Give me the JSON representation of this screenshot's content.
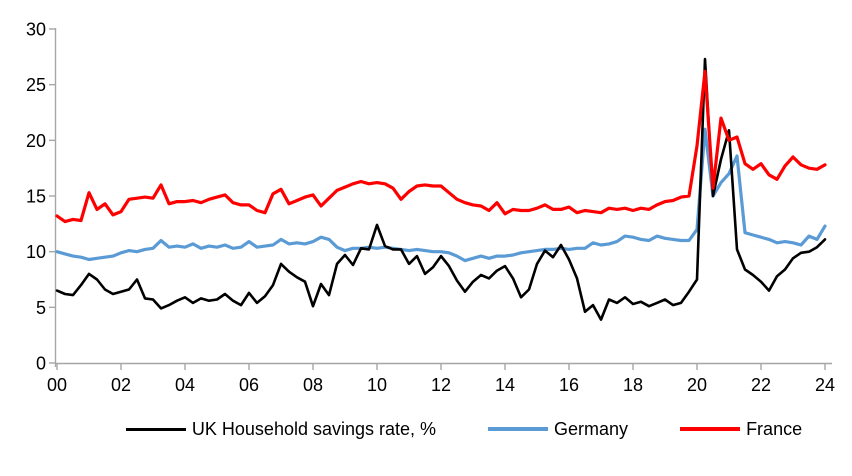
{
  "page": {
    "background": "#FFFFFF"
  },
  "chart_data": {
    "type": "line",
    "title": "",
    "grid": false,
    "legend_position": "bottom",
    "axis_color": "#A6A6A6",
    "label_color": "#000000",
    "x_axis": {
      "unit": "quarterly",
      "start_year": 2000,
      "step_years": 0.25,
      "tick_years": [
        2000,
        2002,
        2004,
        2006,
        2008,
        2010,
        2012,
        2014,
        2016,
        2018,
        2020,
        2022,
        2024
      ],
      "tick_labels": [
        "00",
        "02",
        "04",
        "06",
        "08",
        "10",
        "12",
        "14",
        "16",
        "18",
        "20",
        "22",
        "24"
      ]
    },
    "y_axis": {
      "min": 0,
      "max": 30,
      "tick_step": 5,
      "tick_values": [
        0,
        5,
        10,
        15,
        20,
        25,
        30
      ],
      "tick_labels": [
        "0",
        "5",
        "10",
        "15",
        "20",
        "25",
        "30"
      ]
    },
    "series": [
      {
        "name": "UK Household savings rate, %",
        "color": "#000000",
        "stroke_width": 2.6,
        "values": [
          6.5,
          6.2,
          6.1,
          7.0,
          8.0,
          7.5,
          6.6,
          6.2,
          6.4,
          6.6,
          7.5,
          5.8,
          5.7,
          4.9,
          5.2,
          5.6,
          5.9,
          5.4,
          5.8,
          5.6,
          5.7,
          6.2,
          5.6,
          5.2,
          6.3,
          5.4,
          6.0,
          7.0,
          8.9,
          8.2,
          7.7,
          7.3,
          5.1,
          7.1,
          6.1,
          8.9,
          9.7,
          8.8,
          10.3,
          10.2,
          12.4,
          10.5,
          10.2,
          10.2,
          8.9,
          9.6,
          8.0,
          8.6,
          9.6,
          8.7,
          7.4,
          6.4,
          7.3,
          7.9,
          7.6,
          8.3,
          8.7,
          7.6,
          5.9,
          6.6,
          8.9,
          10.1,
          9.5,
          10.6,
          9.3,
          7.6,
          4.6,
          5.2,
          3.9,
          5.7,
          5.4,
          5.9,
          5.3,
          5.5,
          5.1,
          5.4,
          5.7,
          5.2,
          5.4,
          6.4,
          7.5,
          27.3,
          15.0,
          18.3,
          20.9,
          10.2,
          8.4,
          7.9,
          7.3,
          6.5,
          7.8,
          8.4,
          9.4,
          9.9,
          10.0,
          10.4,
          11.1
        ]
      },
      {
        "name": "Germany",
        "color": "#5B9BD5",
        "stroke_width": 3.2,
        "values": [
          10.0,
          9.8,
          9.6,
          9.5,
          9.3,
          9.4,
          9.5,
          9.6,
          9.9,
          10.1,
          10.0,
          10.2,
          10.3,
          11.0,
          10.4,
          10.5,
          10.4,
          10.7,
          10.3,
          10.5,
          10.4,
          10.6,
          10.3,
          10.4,
          10.9,
          10.4,
          10.5,
          10.6,
          11.1,
          10.7,
          10.8,
          10.7,
          10.9,
          11.3,
          11.1,
          10.4,
          10.1,
          10.3,
          10.3,
          10.4,
          10.3,
          10.4,
          10.3,
          10.2,
          10.1,
          10.2,
          10.1,
          10.0,
          10.0,
          9.9,
          9.6,
          9.2,
          9.4,
          9.6,
          9.4,
          9.6,
          9.6,
          9.7,
          9.9,
          10.0,
          10.1,
          10.2,
          10.2,
          10.3,
          10.2,
          10.3,
          10.3,
          10.8,
          10.6,
          10.7,
          10.9,
          11.4,
          11.3,
          11.1,
          11.0,
          11.4,
          11.2,
          11.1,
          11.0,
          11.0,
          12.0,
          21.0,
          15.0,
          16.2,
          17.0,
          18.6,
          11.7,
          11.5,
          11.3,
          11.1,
          10.8,
          10.9,
          10.8,
          10.6,
          11.4,
          11.1,
          12.3
        ]
      },
      {
        "name": "France",
        "color": "#FF0000",
        "stroke_width": 3.2,
        "values": [
          13.2,
          12.7,
          12.9,
          12.8,
          15.3,
          13.8,
          14.3,
          13.3,
          13.6,
          14.7,
          14.8,
          14.9,
          14.8,
          16.0,
          14.3,
          14.5,
          14.5,
          14.6,
          14.4,
          14.7,
          14.9,
          15.1,
          14.4,
          14.2,
          14.2,
          13.7,
          13.5,
          15.2,
          15.6,
          14.3,
          14.6,
          14.9,
          15.1,
          14.1,
          14.8,
          15.5,
          15.8,
          16.1,
          16.3,
          16.1,
          16.2,
          16.1,
          15.7,
          14.7,
          15.4,
          15.9,
          16.0,
          15.9,
          15.9,
          15.3,
          14.7,
          14.4,
          14.2,
          14.1,
          13.7,
          14.4,
          13.4,
          13.8,
          13.7,
          13.7,
          13.9,
          14.2,
          13.8,
          13.8,
          14.0,
          13.5,
          13.7,
          13.6,
          13.5,
          13.9,
          13.8,
          13.9,
          13.7,
          13.9,
          13.8,
          14.2,
          14.5,
          14.6,
          14.9,
          15.0,
          19.5,
          26.2,
          15.7,
          22.0,
          20.0,
          20.3,
          17.9,
          17.4,
          17.9,
          16.9,
          16.5,
          17.7,
          18.5,
          17.8,
          17.5,
          17.4,
          17.8
        ]
      }
    ]
  }
}
